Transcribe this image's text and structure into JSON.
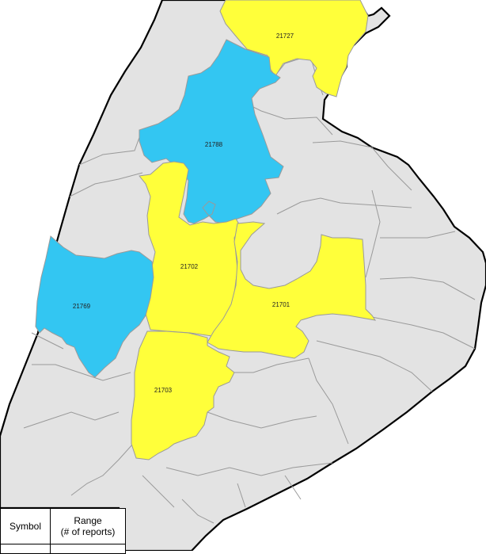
{
  "map": {
    "colors": {
      "default": "#e3e3e3",
      "yellow": "#ffff3a",
      "blue": "#33c6f2",
      "border": "#000000",
      "internal_line": "#9a9a9a"
    },
    "regions": [
      {
        "zip": "21727",
        "fill": "yellow"
      },
      {
        "zip": "21788",
        "fill": "blue"
      },
      {
        "zip": "21702",
        "fill": "yellow"
      },
      {
        "zip": "21769",
        "fill": "blue"
      },
      {
        "zip": "21701",
        "fill": "yellow"
      },
      {
        "zip": "21703",
        "fill": "yellow"
      }
    ]
  },
  "legend": {
    "symbol_header": "Symbol",
    "range_header_line1": "Range",
    "range_header_line2": "(# of reports)"
  }
}
